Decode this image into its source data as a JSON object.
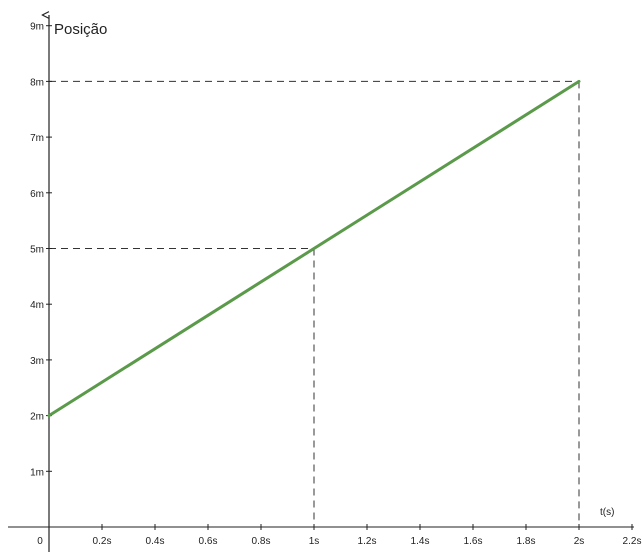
{
  "chart_data": {
    "type": "line",
    "ylabel": "Posição",
    "xlabel": "t(s)",
    "xlim": [
      0,
      2.2
    ],
    "ylim": [
      0,
      9
    ],
    "x_ticks": [
      {
        "value": 0,
        "label": "0"
      },
      {
        "value": 0.2,
        "label": "0.2s"
      },
      {
        "value": 0.4,
        "label": "0.4s"
      },
      {
        "value": 0.6,
        "label": "0.6s"
      },
      {
        "value": 0.8,
        "label": "0.8s"
      },
      {
        "value": 1,
        "label": "1s"
      },
      {
        "value": 1.2,
        "label": "1.2s"
      },
      {
        "value": 1.4,
        "label": "1.4s"
      },
      {
        "value": 1.6,
        "label": "1.6s"
      },
      {
        "value": 1.8,
        "label": "1.8s"
      },
      {
        "value": 2,
        "label": "2s"
      },
      {
        "value": 2.2,
        "label": "2.2s"
      }
    ],
    "y_ticks": [
      {
        "value": 1,
        "label": "1m"
      },
      {
        "value": 2,
        "label": "2m"
      },
      {
        "value": 3,
        "label": "3m"
      },
      {
        "value": 4,
        "label": "4m"
      },
      {
        "value": 5,
        "label": "5m"
      },
      {
        "value": 6,
        "label": "6m"
      },
      {
        "value": 7,
        "label": "7m"
      },
      {
        "value": 8,
        "label": "8m"
      },
      {
        "value": 9,
        "label": "9m"
      }
    ],
    "series": [
      {
        "x": [
          0,
          2
        ],
        "y": [
          2,
          8
        ],
        "color": "#5a9a4a"
      }
    ],
    "guide_points": [
      {
        "x": 1,
        "y": 5
      },
      {
        "x": 2,
        "y": 8
      }
    ],
    "grid": false,
    "legend": "none"
  }
}
